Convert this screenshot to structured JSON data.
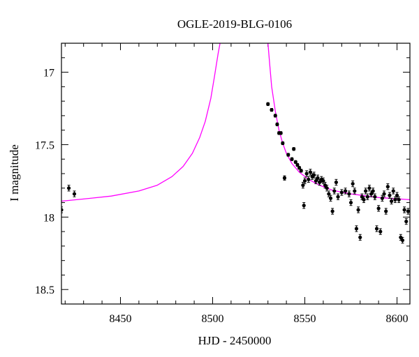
{
  "chart_data": {
    "type": "scatter",
    "title": "OGLE-2019-BLG-0106",
    "xlabel": "HJD - 2450000",
    "ylabel": "I magnitude",
    "xlim": [
      8418,
      8607
    ],
    "ylim": [
      18.6,
      16.8
    ],
    "y_inverted": true,
    "x_ticks": [
      8450,
      8500,
      8550,
      8600
    ],
    "y_ticks": [
      17,
      17.5,
      18,
      18.5
    ],
    "y_tick_labels": [
      "17",
      "17.5",
      "18",
      "18.5"
    ],
    "grid": false,
    "colors": {
      "model": "#ff00ff",
      "data": "#000000",
      "axes": "#000000"
    },
    "model": {
      "name": "",
      "x": [
        8418,
        8430,
        8445,
        8460,
        8470,
        8478,
        8484,
        8489,
        8493,
        8496,
        8499,
        8501,
        8503,
        8504,
        8530,
        8531,
        8532,
        8534,
        8536,
        8538,
        8540,
        8543,
        8547,
        8552,
        8558,
        8565,
        8575,
        8590,
        8607
      ],
      "y": [
        17.89,
        17.875,
        17.855,
        17.82,
        17.78,
        17.72,
        17.65,
        17.56,
        17.45,
        17.34,
        17.18,
        17.03,
        16.87,
        16.8,
        16.8,
        16.95,
        17.1,
        17.27,
        17.4,
        17.49,
        17.56,
        17.63,
        17.69,
        17.74,
        17.78,
        17.815,
        17.84,
        17.865,
        17.88
      ]
    },
    "points": [
      {
        "x": 8418,
        "y": 17.95,
        "e": 0.02
      },
      {
        "x": 8422,
        "y": 17.8,
        "e": 0.02
      },
      {
        "x": 8425,
        "y": 17.84,
        "e": 0.02
      },
      {
        "x": 8530,
        "y": 17.22,
        "e": 0.01
      },
      {
        "x": 8532,
        "y": 17.26,
        "e": 0.01
      },
      {
        "x": 8534,
        "y": 17.3,
        "e": 0.01
      },
      {
        "x": 8535,
        "y": 17.36,
        "e": 0.01
      },
      {
        "x": 8536,
        "y": 17.42,
        "e": 0.01
      },
      {
        "x": 8537,
        "y": 17.42,
        "e": 0.01
      },
      {
        "x": 8538,
        "y": 17.49,
        "e": 0.01
      },
      {
        "x": 8539,
        "y": 17.73,
        "e": 0.015
      },
      {
        "x": 8541,
        "y": 17.57,
        "e": 0.01
      },
      {
        "x": 8543,
        "y": 17.6,
        "e": 0.01
      },
      {
        "x": 8544,
        "y": 17.53,
        "e": 0.01
      },
      {
        "x": 8545,
        "y": 17.62,
        "e": 0.01
      },
      {
        "x": 8546,
        "y": 17.64,
        "e": 0.01
      },
      {
        "x": 8547,
        "y": 17.66,
        "e": 0.01
      },
      {
        "x": 8548,
        "y": 17.68,
        "e": 0.01
      },
      {
        "x": 8549,
        "y": 17.78,
        "e": 0.02
      },
      {
        "x": 8549.5,
        "y": 17.92,
        "e": 0.02
      },
      {
        "x": 8550,
        "y": 17.75,
        "e": 0.02
      },
      {
        "x": 8551,
        "y": 17.7,
        "e": 0.02
      },
      {
        "x": 8552,
        "y": 17.74,
        "e": 0.02
      },
      {
        "x": 8553,
        "y": 17.69,
        "e": 0.02
      },
      {
        "x": 8554,
        "y": 17.72,
        "e": 0.02
      },
      {
        "x": 8555,
        "y": 17.71,
        "e": 0.02
      },
      {
        "x": 8556,
        "y": 17.75,
        "e": 0.02
      },
      {
        "x": 8557,
        "y": 17.73,
        "e": 0.02
      },
      {
        "x": 8558,
        "y": 17.76,
        "e": 0.02
      },
      {
        "x": 8559,
        "y": 17.74,
        "e": 0.02
      },
      {
        "x": 8560,
        "y": 17.75,
        "e": 0.02
      },
      {
        "x": 8561,
        "y": 17.78,
        "e": 0.02
      },
      {
        "x": 8562,
        "y": 17.8,
        "e": 0.02
      },
      {
        "x": 8563,
        "y": 17.84,
        "e": 0.02
      },
      {
        "x": 8564,
        "y": 17.87,
        "e": 0.02
      },
      {
        "x": 8565,
        "y": 17.96,
        "e": 0.02
      },
      {
        "x": 8566,
        "y": 17.82,
        "e": 0.02
      },
      {
        "x": 8567,
        "y": 17.76,
        "e": 0.02
      },
      {
        "x": 8568,
        "y": 17.86,
        "e": 0.02
      },
      {
        "x": 8570,
        "y": 17.83,
        "e": 0.02
      },
      {
        "x": 8572,
        "y": 17.82,
        "e": 0.02
      },
      {
        "x": 8574,
        "y": 17.84,
        "e": 0.02
      },
      {
        "x": 8575,
        "y": 17.9,
        "e": 0.02
      },
      {
        "x": 8576,
        "y": 17.77,
        "e": 0.02
      },
      {
        "x": 8577,
        "y": 17.82,
        "e": 0.02
      },
      {
        "x": 8578,
        "y": 18.08,
        "e": 0.02
      },
      {
        "x": 8579,
        "y": 17.95,
        "e": 0.02
      },
      {
        "x": 8580,
        "y": 18.14,
        "e": 0.02
      },
      {
        "x": 8581,
        "y": 17.86,
        "e": 0.02
      },
      {
        "x": 8582,
        "y": 17.88,
        "e": 0.02
      },
      {
        "x": 8583,
        "y": 17.82,
        "e": 0.02
      },
      {
        "x": 8584,
        "y": 17.86,
        "e": 0.02
      },
      {
        "x": 8585,
        "y": 17.8,
        "e": 0.02
      },
      {
        "x": 8586,
        "y": 17.84,
        "e": 0.02
      },
      {
        "x": 8587,
        "y": 17.82,
        "e": 0.02
      },
      {
        "x": 8588,
        "y": 17.86,
        "e": 0.02
      },
      {
        "x": 8589,
        "y": 18.08,
        "e": 0.02
      },
      {
        "x": 8590,
        "y": 17.94,
        "e": 0.02
      },
      {
        "x": 8591,
        "y": 18.1,
        "e": 0.02
      },
      {
        "x": 8592,
        "y": 17.87,
        "e": 0.02
      },
      {
        "x": 8593,
        "y": 17.84,
        "e": 0.02
      },
      {
        "x": 8594,
        "y": 17.96,
        "e": 0.02
      },
      {
        "x": 8595,
        "y": 17.79,
        "e": 0.02
      },
      {
        "x": 8596,
        "y": 17.85,
        "e": 0.02
      },
      {
        "x": 8597,
        "y": 17.89,
        "e": 0.02
      },
      {
        "x": 8598,
        "y": 17.82,
        "e": 0.02
      },
      {
        "x": 8599,
        "y": 17.88,
        "e": 0.02
      },
      {
        "x": 8600,
        "y": 17.85,
        "e": 0.02
      },
      {
        "x": 8601,
        "y": 17.88,
        "e": 0.02
      },
      {
        "x": 8602,
        "y": 18.14,
        "e": 0.02
      },
      {
        "x": 8603,
        "y": 18.16,
        "e": 0.02
      },
      {
        "x": 8604,
        "y": 17.95,
        "e": 0.02
      },
      {
        "x": 8605,
        "y": 18.03,
        "e": 0.02
      },
      {
        "x": 8606,
        "y": 17.96,
        "e": 0.02
      }
    ]
  }
}
